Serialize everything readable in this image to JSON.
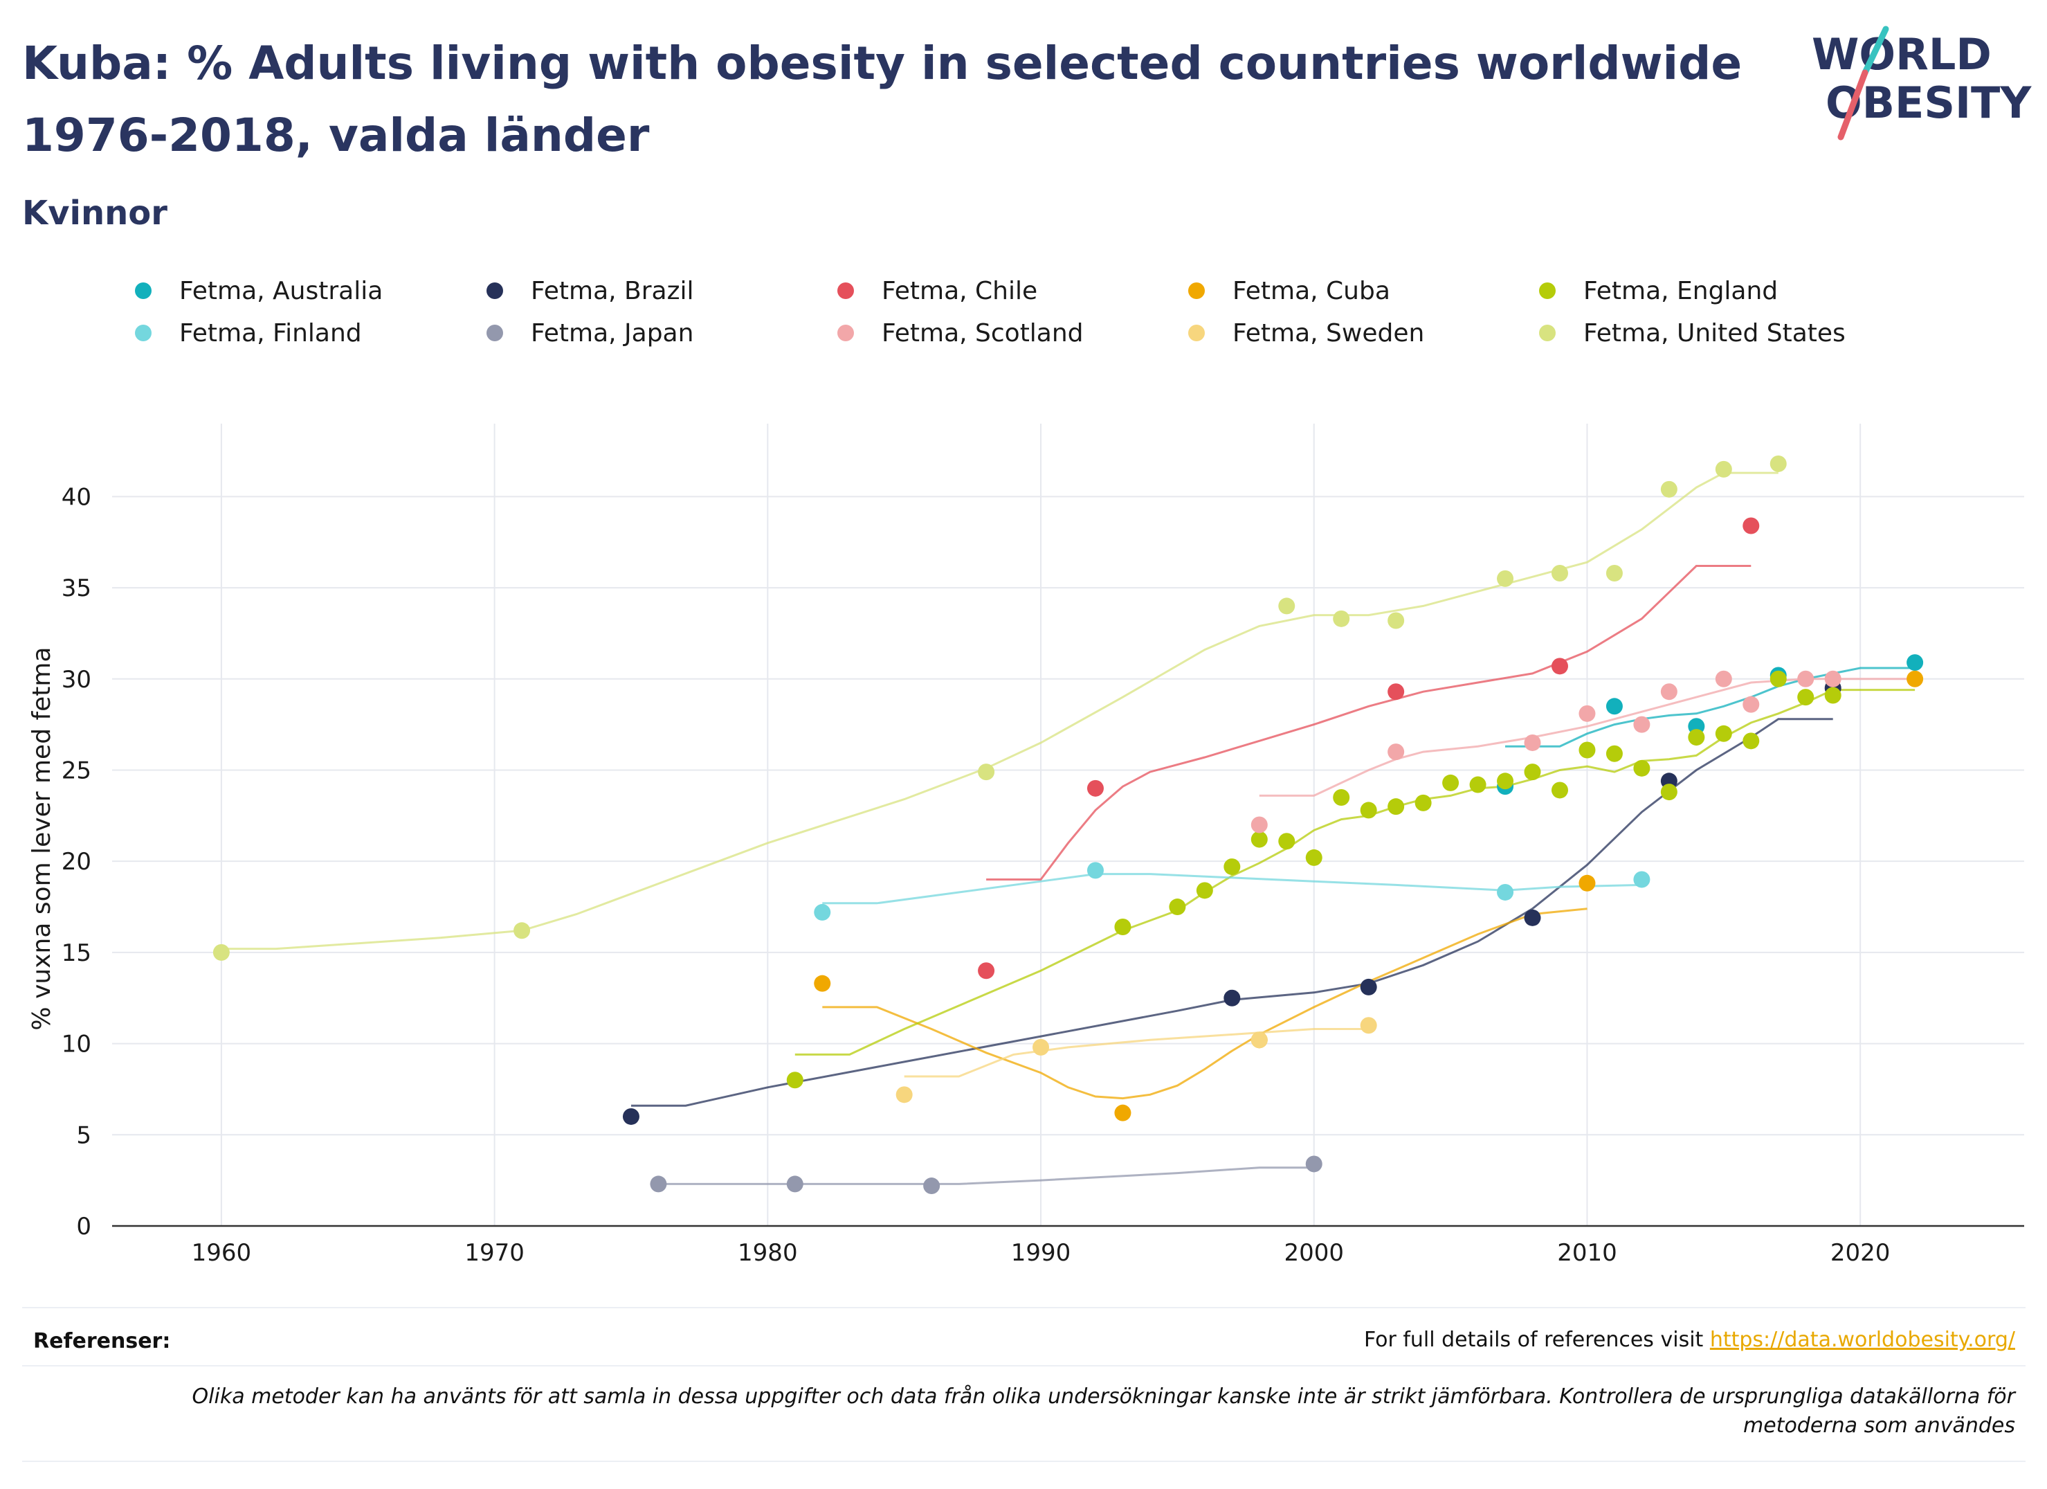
{
  "header": {
    "title": "Kuba: % Adults living with obesity in selected countries worldwide 1976-2018, valda länder",
    "subtitle": "Kvinnor"
  },
  "logo": {
    "line1": "WORLD",
    "line2": "OBESITY"
  },
  "colors": {
    "Australia": "#12b0bc",
    "Brazil": "#263159",
    "Chile": "#e5505b",
    "Cuba": "#f0a800",
    "England": "#b5cc0a",
    "Finland": "#74d7de",
    "Japan": "#9398ad",
    "Scotland": "#f2a7a9",
    "Sweden": "#f7d67e",
    "United States": "#d8e380",
    "title": "#2a3560",
    "link": "#e8a800"
  },
  "legend": [
    {
      "key": "Australia",
      "label": "Fetma, Australia"
    },
    {
      "key": "Brazil",
      "label": "Fetma, Brazil"
    },
    {
      "key": "Chile",
      "label": "Fetma, Chile"
    },
    {
      "key": "Cuba",
      "label": "Fetma, Cuba"
    },
    {
      "key": "England",
      "label": "Fetma, England"
    },
    {
      "key": "Finland",
      "label": "Fetma, Finland"
    },
    {
      "key": "Japan",
      "label": "Fetma, Japan"
    },
    {
      "key": "Scotland",
      "label": "Fetma, Scotland"
    },
    {
      "key": "Sweden",
      "label": "Fetma, Sweden"
    },
    {
      "key": "United States",
      "label": "Fetma, United States"
    }
  ],
  "chart_data": {
    "type": "scatter",
    "title": "Kuba: % Adults living with obesity in selected countries worldwide 1976-2018, valda länder",
    "subtitle": "Kvinnor",
    "xlabel": "",
    "ylabel": "%  vuxna som lever med fetma",
    "xlim": [
      1956,
      2026
    ],
    "ylim": [
      0,
      44
    ],
    "xticks": [
      1960,
      1970,
      1980,
      1990,
      2000,
      2010,
      2020
    ],
    "yticks": [
      0,
      5,
      10,
      15,
      20,
      25,
      30,
      35,
      40
    ],
    "grid": true,
    "legend_position": "top",
    "series": [
      {
        "name": "Fetma, Australia",
        "key": "Australia",
        "points": [
          [
            2007,
            24.1
          ],
          [
            2011,
            28.5
          ],
          [
            2014,
            27.4
          ],
          [
            2017,
            30.2
          ],
          [
            2022,
            30.9
          ]
        ],
        "trend": [
          [
            2007,
            26.3
          ],
          [
            2008,
            26.3
          ],
          [
            2009,
            26.3
          ],
          [
            2010,
            27.0
          ],
          [
            2011,
            27.5
          ],
          [
            2012,
            27.8
          ],
          [
            2013,
            28.0
          ],
          [
            2014,
            28.1
          ],
          [
            2015,
            28.5
          ],
          [
            2016,
            29.0
          ],
          [
            2017,
            29.6
          ],
          [
            2018,
            30.0
          ],
          [
            2019,
            30.3
          ],
          [
            2020,
            30.6
          ],
          [
            2021,
            30.6
          ],
          [
            2022,
            30.6
          ]
        ]
      },
      {
        "name": "Fetma, Brazil",
        "key": "Brazil",
        "points": [
          [
            1975,
            6.0
          ],
          [
            1997,
            12.5
          ],
          [
            2002,
            13.1
          ],
          [
            2008,
            16.9
          ],
          [
            2013,
            24.4
          ],
          [
            2019,
            29.5
          ]
        ],
        "trend": [
          [
            1975,
            6.6
          ],
          [
            1977,
            6.6
          ],
          [
            1980,
            7.6
          ],
          [
            1985,
            9.0
          ],
          [
            1990,
            10.4
          ],
          [
            1995,
            11.8
          ],
          [
            1997,
            12.4
          ],
          [
            2000,
            12.8
          ],
          [
            2002,
            13.3
          ],
          [
            2004,
            14.3
          ],
          [
            2006,
            15.6
          ],
          [
            2008,
            17.4
          ],
          [
            2010,
            19.8
          ],
          [
            2012,
            22.7
          ],
          [
            2014,
            25.0
          ],
          [
            2016,
            26.8
          ],
          [
            2017,
            27.8
          ],
          [
            2019,
            27.8
          ]
        ]
      },
      {
        "name": "Fetma, Chile",
        "key": "Chile",
        "points": [
          [
            1988,
            14.0
          ],
          [
            1992,
            24.0
          ],
          [
            2003,
            29.3
          ],
          [
            2009,
            30.7
          ],
          [
            2016,
            38.4
          ]
        ],
        "trend": [
          [
            1988,
            19.0
          ],
          [
            1990,
            19.0
          ],
          [
            1991,
            21.0
          ],
          [
            1992,
            22.8
          ],
          [
            1993,
            24.1
          ],
          [
            1994,
            24.9
          ],
          [
            1996,
            25.7
          ],
          [
            1998,
            26.6
          ],
          [
            2000,
            27.5
          ],
          [
            2002,
            28.5
          ],
          [
            2004,
            29.3
          ],
          [
            2006,
            29.8
          ],
          [
            2008,
            30.3
          ],
          [
            2010,
            31.5
          ],
          [
            2012,
            33.3
          ],
          [
            2014,
            36.2
          ],
          [
            2016,
            36.2
          ]
        ]
      },
      {
        "name": "Fetma, Cuba",
        "key": "Cuba",
        "points": [
          [
            1982,
            13.3
          ],
          [
            1993,
            6.2
          ],
          [
            1998,
            10.2
          ],
          [
            2010,
            18.8
          ],
          [
            2022,
            30.0
          ]
        ],
        "trend": [
          [
            1982,
            12.0
          ],
          [
            1984,
            12.0
          ],
          [
            1986,
            10.8
          ],
          [
            1988,
            9.5
          ],
          [
            1990,
            8.4
          ],
          [
            1991,
            7.6
          ],
          [
            1992,
            7.1
          ],
          [
            1993,
            7.0
          ],
          [
            1994,
            7.2
          ],
          [
            1995,
            7.7
          ],
          [
            1996,
            8.6
          ],
          [
            1997,
            9.6
          ],
          [
            1998,
            10.5
          ],
          [
            2000,
            12.0
          ],
          [
            2002,
            13.4
          ],
          [
            2004,
            14.7
          ],
          [
            2006,
            16.0
          ],
          [
            2008,
            17.1
          ],
          [
            2010,
            17.4
          ]
        ]
      },
      {
        "name": "Fetma, England",
        "key": "England",
        "points": [
          [
            1981,
            8.0
          ],
          [
            1993,
            16.4
          ],
          [
            1995,
            17.5
          ],
          [
            1996,
            18.4
          ],
          [
            1997,
            19.7
          ],
          [
            1998,
            21.2
          ],
          [
            1999,
            21.1
          ],
          [
            2000,
            20.2
          ],
          [
            2001,
            23.5
          ],
          [
            2002,
            22.8
          ],
          [
            2003,
            23.0
          ],
          [
            2004,
            23.2
          ],
          [
            2005,
            24.3
          ],
          [
            2006,
            24.2
          ],
          [
            2007,
            24.4
          ],
          [
            2008,
            24.9
          ],
          [
            2009,
            23.9
          ],
          [
            2010,
            26.1
          ],
          [
            2011,
            25.9
          ],
          [
            2012,
            25.1
          ],
          [
            2013,
            23.8
          ],
          [
            2014,
            26.8
          ],
          [
            2015,
            27.0
          ],
          [
            2016,
            26.6
          ],
          [
            2017,
            30.0
          ],
          [
            2018,
            29.0
          ],
          [
            2019,
            29.1
          ]
        ],
        "trend": [
          [
            1981,
            9.4
          ],
          [
            1983,
            9.4
          ],
          [
            1985,
            10.8
          ],
          [
            1990,
            14.0
          ],
          [
            1993,
            16.2
          ],
          [
            1995,
            17.3
          ],
          [
            1996,
            18.3
          ],
          [
            1997,
            19.2
          ],
          [
            1998,
            19.9
          ],
          [
            1999,
            20.7
          ],
          [
            2000,
            21.7
          ],
          [
            2001,
            22.3
          ],
          [
            2002,
            22.5
          ],
          [
            2003,
            23.0
          ],
          [
            2004,
            23.4
          ],
          [
            2005,
            23.6
          ],
          [
            2006,
            24.0
          ],
          [
            2007,
            24.1
          ],
          [
            2008,
            24.5
          ],
          [
            2009,
            25.0
          ],
          [
            2010,
            25.2
          ],
          [
            2011,
            24.9
          ],
          [
            2012,
            25.5
          ],
          [
            2013,
            25.6
          ],
          [
            2014,
            25.8
          ],
          [
            2015,
            26.8
          ],
          [
            2016,
            27.6
          ],
          [
            2017,
            28.1
          ],
          [
            2018,
            28.7
          ],
          [
            2019,
            29.4
          ],
          [
            2022,
            29.4
          ]
        ]
      },
      {
        "name": "Fetma, Finland",
        "key": "Finland",
        "points": [
          [
            1982,
            17.2
          ],
          [
            1992,
            19.5
          ],
          [
            2007,
            18.3
          ],
          [
            2012,
            19.0
          ]
        ],
        "trend": [
          [
            1982,
            17.7
          ],
          [
            1984,
            17.7
          ],
          [
            1987,
            18.3
          ],
          [
            1990,
            18.9
          ],
          [
            1992,
            19.3
          ],
          [
            1994,
            19.3
          ],
          [
            1997,
            19.1
          ],
          [
            2000,
            18.9
          ],
          [
            2003,
            18.7
          ],
          [
            2007,
            18.4
          ],
          [
            2009,
            18.6
          ],
          [
            2012,
            18.7
          ]
        ]
      },
      {
        "name": "Fetma, Japan",
        "key": "Japan",
        "points": [
          [
            1976,
            2.3
          ],
          [
            1981,
            2.3
          ],
          [
            1986,
            2.2
          ],
          [
            2000,
            3.4
          ]
        ],
        "trend": [
          [
            1976,
            2.3
          ],
          [
            1981,
            2.3
          ],
          [
            1987,
            2.3
          ],
          [
            1990,
            2.5
          ],
          [
            1995,
            2.9
          ],
          [
            1998,
            3.2
          ],
          [
            2000,
            3.2
          ]
        ]
      },
      {
        "name": "Fetma, Scotland",
        "key": "Scotland",
        "points": [
          [
            1998,
            22.0
          ],
          [
            2003,
            26.0
          ],
          [
            2008,
            26.5
          ],
          [
            2010,
            28.1
          ],
          [
            2012,
            27.5
          ],
          [
            2013,
            29.3
          ],
          [
            2015,
            30.0
          ],
          [
            2016,
            28.6
          ],
          [
            2018,
            30.0
          ],
          [
            2019,
            30.0
          ]
        ],
        "trend": [
          [
            1998,
            23.6
          ],
          [
            2000,
            23.6
          ],
          [
            2001,
            24.3
          ],
          [
            2002,
            25.0
          ],
          [
            2003,
            25.6
          ],
          [
            2004,
            26.0
          ],
          [
            2006,
            26.3
          ],
          [
            2008,
            26.8
          ],
          [
            2010,
            27.4
          ],
          [
            2012,
            28.2
          ],
          [
            2014,
            29.0
          ],
          [
            2016,
            29.8
          ],
          [
            2018,
            30.0
          ],
          [
            2022,
            30.0
          ]
        ]
      },
      {
        "name": "Fetma, Sweden",
        "key": "Sweden",
        "points": [
          [
            1985,
            7.2
          ],
          [
            1990,
            9.8
          ],
          [
            1998,
            10.2
          ],
          [
            2002,
            11.0
          ]
        ],
        "trend": [
          [
            1985,
            8.2
          ],
          [
            1987,
            8.2
          ],
          [
            1989,
            9.4
          ],
          [
            1991,
            9.8
          ],
          [
            1994,
            10.2
          ],
          [
            1998,
            10.6
          ],
          [
            2000,
            10.8
          ],
          [
            2002,
            10.8
          ]
        ]
      },
      {
        "name": "Fetma, United States",
        "key": "United States",
        "points": [
          [
            1960,
            15.0
          ],
          [
            1971,
            16.2
          ],
          [
            1988,
            24.9
          ],
          [
            1999,
            34.0
          ],
          [
            2001,
            33.3
          ],
          [
            2003,
            33.2
          ],
          [
            2007,
            35.5
          ],
          [
            2009,
            35.8
          ],
          [
            2011,
            35.8
          ],
          [
            2013,
            40.4
          ],
          [
            2015,
            41.5
          ],
          [
            2017,
            41.8
          ]
        ],
        "trend": [
          [
            1960,
            15.2
          ],
          [
            1962,
            15.2
          ],
          [
            1968,
            15.8
          ],
          [
            1971,
            16.2
          ],
          [
            1973,
            17.1
          ],
          [
            1980,
            21.0
          ],
          [
            1985,
            23.4
          ],
          [
            1988,
            25.1
          ],
          [
            1990,
            26.5
          ],
          [
            1993,
            29.0
          ],
          [
            1996,
            31.6
          ],
          [
            1998,
            32.9
          ],
          [
            2000,
            33.5
          ],
          [
            2002,
            33.5
          ],
          [
            2004,
            34.0
          ],
          [
            2006,
            34.8
          ],
          [
            2008,
            35.6
          ],
          [
            2010,
            36.4
          ],
          [
            2012,
            38.2
          ],
          [
            2014,
            40.5
          ],
          [
            2015,
            41.3
          ],
          [
            2017,
            41.3
          ]
        ]
      }
    ]
  },
  "footer": {
    "ref_label": "Referenser:",
    "ref_text": "For full details of references visit ",
    "ref_link": "https://data.worldobesity.org/",
    "disclaimer": "Olika metoder kan ha använts för att samla in dessa uppgifter och data från olika undersökningar kanske inte är strikt jämförbara. Kontrollera de ursprungliga datakällorna för metoderna som användes"
  }
}
